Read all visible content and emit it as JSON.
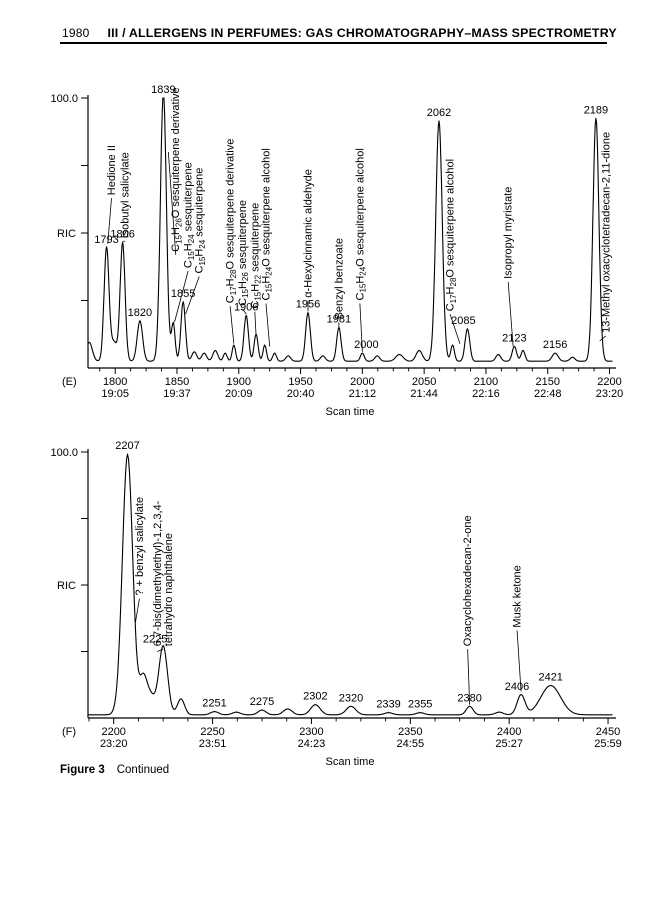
{
  "page": {
    "page_number": "1980",
    "header_title": "III / ALLERGENS IN PERFUMES: GAS CHROMATOGRAPHY–MASS SPECTROMETRY",
    "caption_label": "Figure 3",
    "caption_text": "Continued",
    "ink_color": "#000000"
  },
  "chart_data": [
    {
      "type": "line",
      "panel": "(E)",
      "ylabel": "RIC",
      "xlabel": "Scan time",
      "y_top_label": "100.0",
      "ylim": [
        0,
        100
      ],
      "xlim": [
        1778,
        2202
      ],
      "y_ticks": [
        25,
        50,
        75,
        100
      ],
      "x_ticks": [
        {
          "scan": "1800",
          "time": "19:05"
        },
        {
          "scan": "1850",
          "time": "19:37"
        },
        {
          "scan": "1900",
          "time": "20:09"
        },
        {
          "scan": "1950",
          "time": "20:40"
        },
        {
          "scan": "2000",
          "time": "21:12"
        },
        {
          "scan": "2050",
          "time": "21:44"
        },
        {
          "scan": "2100",
          "time": "22:16"
        },
        {
          "scan": "2150",
          "time": "22:48"
        },
        {
          "scan": "2200",
          "time": "23:20"
        }
      ],
      "baseline": 2.5,
      "peaks": [
        {
          "scan": 1779,
          "h": 7,
          "w": 2.5
        },
        {
          "scan": 1793,
          "h": 42,
          "w": 2.0,
          "label": "1793"
        },
        {
          "scan": 1799,
          "h": 7,
          "w": 2.5
        },
        {
          "scan": 1806,
          "h": 44,
          "w": 2.0,
          "label": "1806"
        },
        {
          "scan": 1820,
          "h": 15,
          "w": 2.2,
          "label": "1820"
        },
        {
          "scan": 1839,
          "h": 100,
          "w": 2.4,
          "label": "1839"
        },
        {
          "scan": 1847,
          "h": 14,
          "w": 1.5
        },
        {
          "scan": 1855,
          "h": 22,
          "w": 1.8,
          "label": "1855"
        },
        {
          "scan": 1864,
          "h": 3.5,
          "w": 2.0
        },
        {
          "scan": 1872,
          "h": 3,
          "w": 2.0
        },
        {
          "scan": 1881,
          "h": 4,
          "w": 2.0
        },
        {
          "scan": 1889,
          "h": 3,
          "w": 1.5
        },
        {
          "scan": 1896,
          "h": 6,
          "w": 1.4
        },
        {
          "scan": 1906,
          "h": 17,
          "w": 1.8,
          "label": "1906"
        },
        {
          "scan": 1914,
          "h": 10,
          "w": 1.6
        },
        {
          "scan": 1921,
          "h": 6,
          "w": 1.4
        },
        {
          "scan": 1929,
          "h": 3,
          "w": 1.5
        },
        {
          "scan": 1940,
          "h": 2,
          "w": 2.0
        },
        {
          "scan": 1956,
          "h": 18,
          "w": 1.9,
          "label": "1956"
        },
        {
          "scan": 1968,
          "h": 2,
          "w": 2.0
        },
        {
          "scan": 1981,
          "h": 12.5,
          "w": 1.8,
          "label": "1981"
        },
        {
          "scan": 2000,
          "h": 3,
          "w": 1.6,
          "label": "2000",
          "dx": 4
        },
        {
          "scan": 2012,
          "h": 2,
          "w": 2.0
        },
        {
          "scan": 2030,
          "h": 2.5,
          "w": 3.0
        },
        {
          "scan": 2046,
          "h": 4,
          "w": 2.5
        },
        {
          "scan": 2062,
          "h": 89,
          "w": 2.6,
          "label": "2062"
        },
        {
          "scan": 2073,
          "h": 6,
          "w": 1.5
        },
        {
          "scan": 2085,
          "h": 12,
          "w": 1.9,
          "label": "2085",
          "dx": -4
        },
        {
          "scan": 2110,
          "h": 2.5,
          "w": 2.0
        },
        {
          "scan": 2123,
          "h": 5.5,
          "w": 1.8,
          "label": "2123"
        },
        {
          "scan": 2130,
          "h": 4,
          "w": 1.6
        },
        {
          "scan": 2156,
          "h": 3,
          "w": 2.4,
          "label": "2156"
        },
        {
          "scan": 2170,
          "h": 1.5,
          "w": 2.0
        },
        {
          "scan": 2189,
          "h": 90,
          "w": 2.4,
          "label": "2189"
        }
      ],
      "annotations": [
        {
          "lines": [
            "Hedione II"
          ],
          "at": 1797,
          "tb": 64,
          "to": [
            1794,
            46
          ]
        },
        {
          "lines": [
            "Isobutyl salicylate"
          ],
          "at": 1808,
          "tb": 48,
          "to": [
            1806.5,
            47
          ]
        },
        {
          "lines": [
            "C_15_H_26_O sesquiterpene derivative"
          ],
          "at": 1849,
          "tb": 43,
          "to": [
            1843,
            80
          ]
        },
        {
          "lines": [
            "C_15_H_24_ sesquiterpene"
          ],
          "at": 1859,
          "tb": 37,
          "to": [
            1848,
            17
          ]
        },
        {
          "lines": [
            "C_15_H_24_ sesquiterpene"
          ],
          "at": 1868,
          "tb": 35,
          "to": [
            1857,
            20
          ]
        },
        {
          "lines": [
            "C_17_H_28_O sesquiterpene derivative"
          ],
          "at": 1893,
          "tb": 24,
          "to": [
            1896,
            9
          ]
        },
        {
          "lines": [
            "C_15_H_26_ sesquiterpene"
          ],
          "at": 1903,
          "tb": 23,
          "to": [
            1906,
            20
          ]
        },
        {
          "lines": [
            "C_15_H_22_ sesquiterpene"
          ],
          "at": 1913,
          "tb": 22,
          "to": [
            1914,
            12
          ]
        },
        {
          "lines": [
            "C_15_H_24_O sesquiterpene alcohol"
          ],
          "at": 1922,
          "tb": 25,
          "to": [
            1925,
            8
          ]
        },
        {
          "lines": [
            "α-Hexylcinnamic aldehyde"
          ],
          "at": 1956,
          "tb": 26,
          "to": [
            1956,
            21
          ]
        },
        {
          "lines": [
            "Benzyl benzoate"
          ],
          "at": 1981,
          "tb": 18,
          "to": [
            1981,
            15
          ]
        },
        {
          "lines": [
            "C_15_H_24_O sesquiterpene alcohol"
          ],
          "at": 1998,
          "tb": 25,
          "to": [
            2000,
            6
          ]
        },
        {
          "lines": [
            "C_17_H_28_O sesquiterpene alcohol"
          ],
          "at": 2071,
          "tb": 21,
          "to": [
            2079,
            9
          ]
        },
        {
          "lines": [
            "Isopropyl myristate"
          ],
          "at": 2118,
          "tb": 33,
          "to": [
            2122,
            8
          ]
        },
        {
          "lines": [
            "13-Methyl oxacyclotetradecan-2,11-dione"
          ],
          "at": 2197,
          "tb": 13,
          "to": [
            2192,
            10
          ]
        }
      ]
    },
    {
      "type": "line",
      "panel": "(F)",
      "ylabel": "RIC",
      "xlabel": "Scan time",
      "y_top_label": "100.0",
      "ylim": [
        0,
        100
      ],
      "xlim": [
        2187,
        2452
      ],
      "y_ticks": [
        25,
        50,
        75,
        100
      ],
      "x_ticks": [
        {
          "scan": "2200",
          "time": "23:20"
        },
        {
          "scan": "2250",
          "time": "23:51"
        },
        {
          "scan": "2300",
          "time": "24:23"
        },
        {
          "scan": "2350",
          "time": "24:55"
        },
        {
          "scan": "2400",
          "time": "25:27"
        },
        {
          "scan": "2450",
          "time": "25:59"
        }
      ],
      "baseline": 1.2,
      "peaks": [
        {
          "scan": 2207,
          "h": 98,
          "w": 2.6,
          "label": "2207"
        },
        {
          "scan": 2215,
          "h": 14,
          "w": 2.0
        },
        {
          "scan": 2219,
          "h": 6,
          "w": 2.0
        },
        {
          "scan": 2225,
          "h": 26,
          "w": 2.2,
          "label": "2225",
          "dx": -8,
          "dy": 2
        },
        {
          "scan": 2234,
          "h": 6,
          "w": 1.8
        },
        {
          "scan": 2251,
          "h": 1.2,
          "w": 2.0,
          "label": "2251"
        },
        {
          "scan": 2262,
          "h": 1,
          "w": 2.0
        },
        {
          "scan": 2275,
          "h": 1.8,
          "w": 2.0,
          "label": "2275"
        },
        {
          "scan": 2288,
          "h": 2.2,
          "w": 2.2
        },
        {
          "scan": 2302,
          "h": 3.8,
          "w": 2.4,
          "label": "2302"
        },
        {
          "scan": 2320,
          "h": 3.2,
          "w": 2.4,
          "label": "2320"
        },
        {
          "scan": 2339,
          "h": 0.8,
          "w": 2.0,
          "label": "2339"
        },
        {
          "scan": 2355,
          "h": 0.8,
          "w": 2.0,
          "label": "2355"
        },
        {
          "scan": 2380,
          "h": 3.2,
          "w": 1.7,
          "label": "2380"
        },
        {
          "scan": 2395,
          "h": 1,
          "w": 2.0
        },
        {
          "scan": 2406,
          "h": 7.5,
          "w": 2.0,
          "label": "2406",
          "dx": -4
        },
        {
          "scan": 2421,
          "h": 11,
          "w": 5.0,
          "label": "2421"
        }
      ],
      "annotations": [
        {
          "lines": [
            "? + benzyl salicylate"
          ],
          "at": 2213,
          "tb": 46,
          "to": [
            2211,
            36
          ]
        },
        {
          "lines": [
            "6,7-bis(dimethylethyl)-1,2,3,4-",
            "tetrahydro naphthalene"
          ],
          "at": 2225,
          "tb": 27,
          "to": [
            2222,
            25
          ]
        },
        {
          "lines": [
            "Oxacyclohexadecan-2-one"
          ],
          "at": 2379,
          "tb": 27,
          "to": [
            2380,
            5
          ]
        },
        {
          "lines": [
            "Musk ketone"
          ],
          "at": 2404,
          "tb": 34,
          "to": [
            2406,
            10
          ]
        }
      ]
    }
  ]
}
